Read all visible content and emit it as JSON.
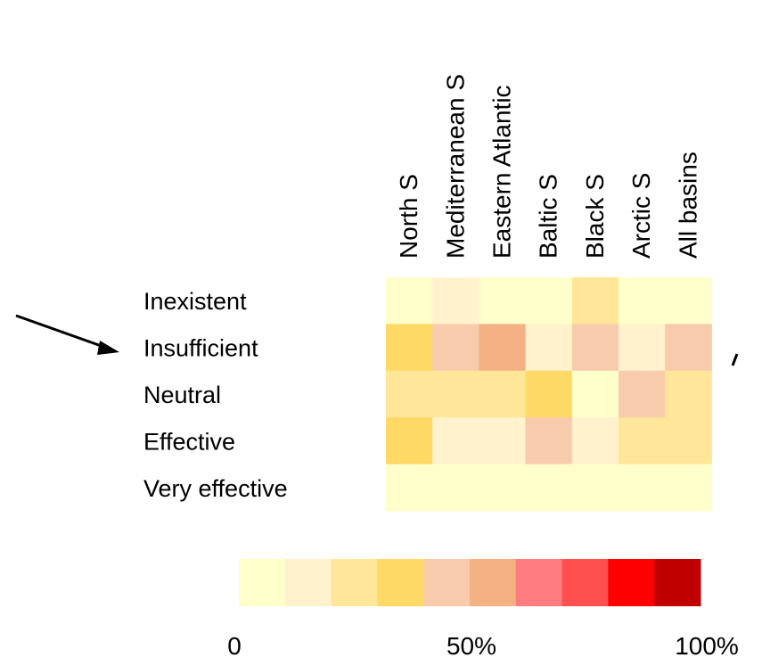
{
  "chart_data": {
    "type": "heatmap",
    "columns": [
      "North S",
      "Mediterranean S",
      "Eastern Atlantic",
      "Baltic S",
      "Black S",
      "Arctic S",
      "All basins"
    ],
    "rows": [
      "Inexistent",
      "Insufficient",
      "Neutral",
      "Effective",
      "Very effective"
    ],
    "bin_index_note": "",
    "values": [
      [
        0,
        10,
        0,
        0,
        20,
        0,
        0
      ],
      [
        30,
        40,
        50,
        10,
        40,
        10,
        40
      ],
      [
        20,
        20,
        20,
        30,
        0,
        40,
        20
      ],
      [
        30,
        10,
        10,
        40,
        10,
        20,
        20
      ],
      [
        0,
        0,
        0,
        0,
        0,
        0,
        0
      ]
    ],
    "color_scale": {
      "bins": [
        "#FFFFCC",
        "#FFF2CC",
        "#FFE699",
        "#FFD966",
        "#F8CBAD",
        "#F4B183",
        "#FF7C80",
        "#FF5050",
        "#FF0000",
        "#C00000"
      ],
      "min_label": "0",
      "mid_label": "50%",
      "max_label": "100%",
      "range": [
        0,
        100
      ]
    }
  }
}
